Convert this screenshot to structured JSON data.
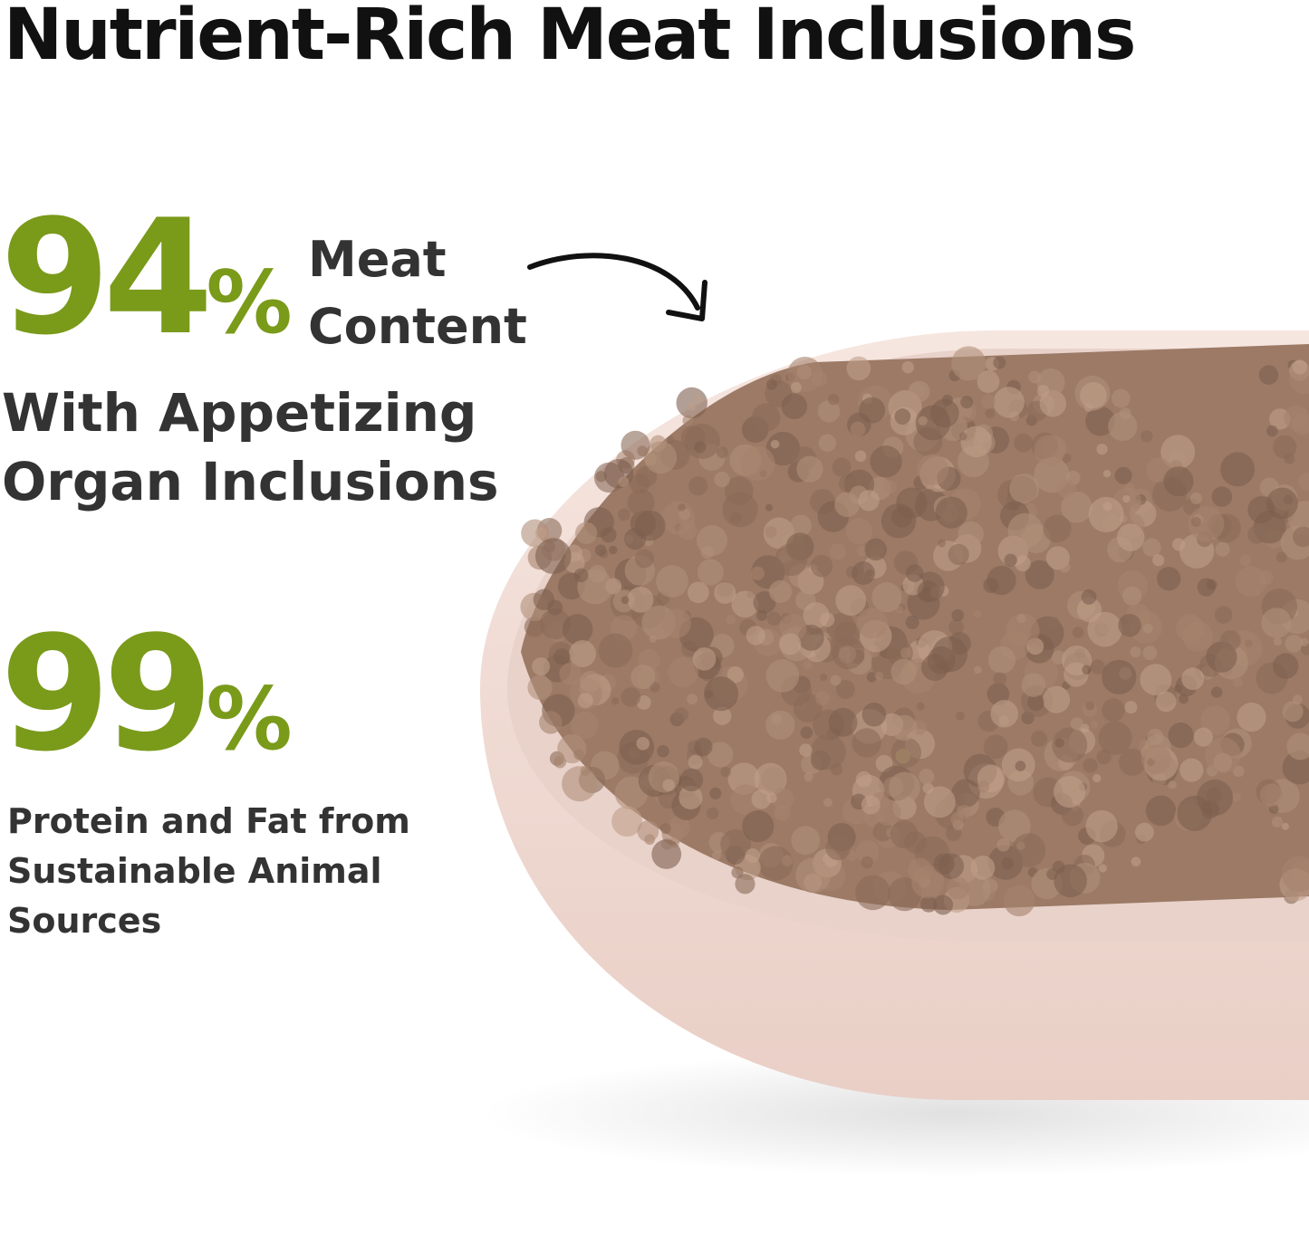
{
  "title": "Nutrient-Rich Meat Inclusions",
  "stats": [
    {
      "number": "94",
      "unit": "%",
      "label_lines": [
        "Meat",
        "Content"
      ],
      "caption_lines": [
        "With Appetizing",
        "Organ Inclusions"
      ]
    },
    {
      "number": "99",
      "unit": "%",
      "caption_lines": [
        "Protein and Fat from",
        "Sustainable Animal",
        "Sources"
      ]
    }
  ],
  "colors": {
    "accent_green": "#7a9a1a",
    "text_dark": "#333333",
    "bowl": "#f3ddd6",
    "food": "#9c7a66"
  },
  "image": {
    "subject": "bowl-of-wet-food",
    "arrow_icon": "curved-arrow"
  }
}
